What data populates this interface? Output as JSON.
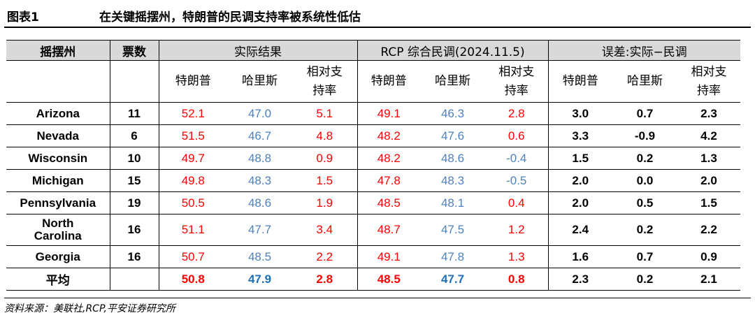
{
  "figure": {
    "label": "图表1",
    "title": "在关键摇摆州，特朗普的民调支持率被系统性低估"
  },
  "header": {
    "state": "摇摆州",
    "votes": "票数",
    "group_actual": "实际结果",
    "group_rcp": "RCP 综合民调(2024.11.5)",
    "group_error": "误差:实际−民调",
    "sub_trump": "特朗普",
    "sub_harris": "哈里斯",
    "sub_margin_line1": "相对支",
    "sub_margin_line2": "持率"
  },
  "rows": [
    {
      "state": "Arizona",
      "votes": "11",
      "actual": [
        "52.1",
        "47.0",
        "5.1"
      ],
      "rcp": [
        "49.1",
        "46.3",
        "2.8"
      ],
      "error": [
        "3.0",
        "0.7",
        "2.3"
      ]
    },
    {
      "state": "Nevada",
      "votes": "6",
      "actual": [
        "51.5",
        "46.7",
        "4.8"
      ],
      "rcp": [
        "48.2",
        "47.6",
        "0.6"
      ],
      "error": [
        "3.3",
        "-0.9",
        "4.2"
      ]
    },
    {
      "state": "Wisconsin",
      "votes": "10",
      "actual": [
        "49.7",
        "48.8",
        "0.9"
      ],
      "rcp": [
        "48.2",
        "48.6",
        "-0.4"
      ],
      "error": [
        "1.5",
        "0.2",
        "1.3"
      ]
    },
    {
      "state": "Michigan",
      "votes": "15",
      "actual": [
        "49.8",
        "48.3",
        "1.5"
      ],
      "rcp": [
        "47.8",
        "48.3",
        "-0.5"
      ],
      "error": [
        "2.0",
        "0.0",
        "2.0"
      ]
    },
    {
      "state": "Pennsylvania",
      "votes": "19",
      "actual": [
        "50.5",
        "48.6",
        "1.9"
      ],
      "rcp": [
        "48.5",
        "48.1",
        "0.4"
      ],
      "error": [
        "2.0",
        "0.5",
        "1.5"
      ]
    },
    {
      "state_line1": "North",
      "state_line2": "Carolina",
      "votes": "16",
      "actual": [
        "51.1",
        "47.7",
        "3.4"
      ],
      "rcp": [
        "48.7",
        "47.5",
        "1.2"
      ],
      "error": [
        "2.4",
        "0.2",
        "2.2"
      ]
    },
    {
      "state": "Georgia",
      "votes": "16",
      "actual": [
        "50.7",
        "48.5",
        "2.2"
      ],
      "rcp": [
        "49.1",
        "47.8",
        "1.3"
      ],
      "error": [
        "1.6",
        "0.7",
        "0.9"
      ]
    },
    {
      "state": "平均",
      "votes": "",
      "actual": [
        "50.8",
        "47.9",
        "2.8"
      ],
      "rcp": [
        "48.5",
        "47.7",
        "0.8"
      ],
      "error": [
        "2.3",
        "0.2",
        "2.1"
      ]
    }
  ],
  "source": "资料来源：美联社,RCP,平安证券研究所",
  "colors": {
    "trump": "#ff0000",
    "harris": "#4f81bd",
    "header_bg": "#d9d9d9"
  }
}
